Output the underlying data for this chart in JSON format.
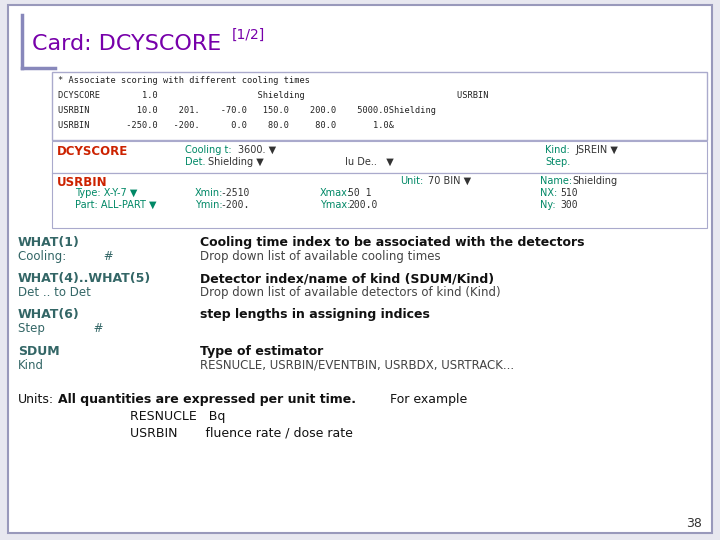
{
  "title_text": "Card: DCYSCORE",
  "title_sup": "[1/2]",
  "title_color": "#7700aa",
  "slide_bg": "#e8e8f0",
  "inner_bg": "#ffffff",
  "border_color": "#9999bb",
  "accent_color": "#8888bb",
  "mono_color": "#222222",
  "what_color": "#336666",
  "red_label_color": "#cc2200",
  "flair_label_color": "#008866",
  "flair_value_color": "#333333",
  "page_num": "38",
  "code_lines": [
    "* Associate scoring with different cooling times",
    "DCYSCORE        1.0                   Shielding                             USRBIN",
    "USRBIN         10.0    201.    -70.0   150.0    200.0    5000.0Shielding",
    "USRBIN       -250.0   -200.      0.0    80.0     80.0       1.0&"
  ],
  "sections": [
    {
      "what": "WHAT(1)",
      "sub": "Cooling:          #",
      "desc_bold": "Cooling time index to be associated with the detectors",
      "desc": "Drop down list of available cooling times"
    },
    {
      "what": "WHAT(4)..WHAT(5)",
      "sub": "Det .. to Det",
      "desc_bold": "Detector index/name of kind (SDUM/Kind)",
      "desc": "Drop down list of available detectors of kind (Kind)"
    },
    {
      "what": "WHAT(6)",
      "sub": "Step             #",
      "desc_bold": "step lengths in assigning indices",
      "desc": ""
    },
    {
      "what": "SDUM",
      "sub": "Kind",
      "desc_bold": "Type of estimator",
      "desc": "RESNUCLE, USRBIN/EVENTBIN, USRBDX, USRTRACK..."
    }
  ]
}
